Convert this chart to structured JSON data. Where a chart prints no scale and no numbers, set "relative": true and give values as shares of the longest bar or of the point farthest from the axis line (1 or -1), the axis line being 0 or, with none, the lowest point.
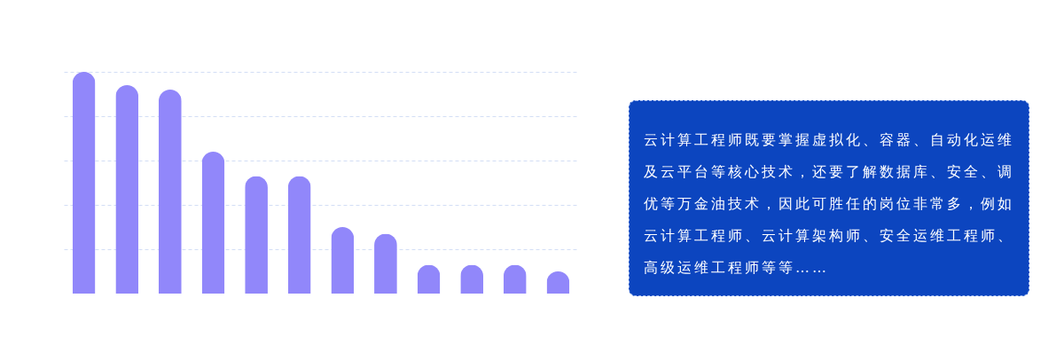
{
  "chart_data": [
    {
      "type": "bar",
      "relative": true,
      "categories": [
        null,
        null,
        null,
        null,
        null,
        null,
        null,
        null,
        null,
        null,
        null,
        null
      ],
      "values": [
        1,
        0.94,
        0.92,
        0.64,
        0.53,
        0.53,
        0.3,
        0.27,
        0.13,
        0.13,
        0.13,
        0.1
      ],
      "color": "#9187fa",
      "grid": "y"
    },
    {
      "type": "other",
      "annotations": [
        "云计算工程师既要掌握虚拟化、容器、自动化运维及云平台等核心技术，还要了解数据库、安全、调优等万金油技术，因此可胜任的岗位非常多，例如云计算工程师、云计算架构师、安全运维工程师、高级运维工程师等等……"
      ]
    }
  ]
}
